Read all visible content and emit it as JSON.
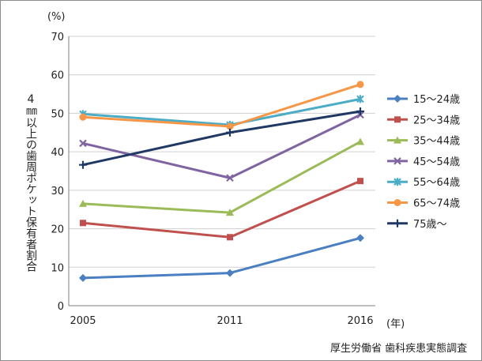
{
  "chart_data": {
    "type": "line",
    "title": "",
    "ylabel": "4㎜以上の歯周ポケット保有者割合",
    "y_unit": "(%)",
    "x_unit": "(年)",
    "source": "厚生労働省 歯科疾患実態調査",
    "x": [
      "2005",
      "2011",
      "2016"
    ],
    "ylim": [
      0,
      70
    ],
    "yticks": [
      0,
      10,
      20,
      30,
      40,
      50,
      60,
      70
    ],
    "grid": true,
    "legend_position": "right",
    "series": [
      {
        "name": "15～24歳",
        "values": [
          7.2,
          8.5,
          17.6
        ],
        "color": "#4a7fc1",
        "marker": "diamond"
      },
      {
        "name": "25～34歳",
        "values": [
          21.5,
          17.8,
          32.4
        ],
        "color": "#c0504d",
        "marker": "square"
      },
      {
        "name": "35～44歳",
        "values": [
          26.5,
          24.2,
          42.6
        ],
        "color": "#9bbb59",
        "marker": "triangle"
      },
      {
        "name": "45～54歳",
        "values": [
          42.2,
          33.2,
          49.6
        ],
        "color": "#8064a2",
        "marker": "x"
      },
      {
        "name": "55～64歳",
        "values": [
          49.8,
          47.0,
          53.7
        ],
        "color": "#4bacc6",
        "marker": "star"
      },
      {
        "name": "65～74歳",
        "values": [
          49.0,
          46.6,
          57.5
        ],
        "color": "#f79646",
        "marker": "circle"
      },
      {
        "name": "75歳～",
        "values": [
          36.6,
          45.0,
          50.5
        ],
        "color": "#1f3864",
        "marker": "plus"
      }
    ]
  }
}
